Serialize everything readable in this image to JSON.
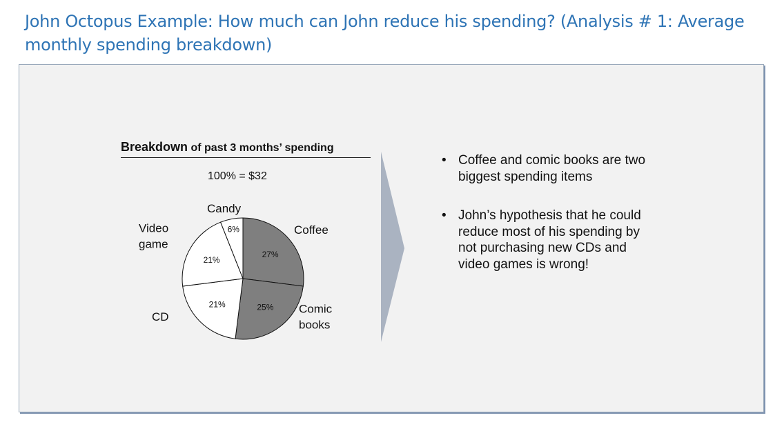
{
  "title": "John Octopus Example: How much can John reduce his spending? (Analysis # 1: Average monthly spending breakdown)",
  "chart_heading": {
    "bold": "Breakdown",
    "rest": " of past 3 months’ spending"
  },
  "colors": {
    "title": "#2e74b5",
    "dark_slice": "#7f7f7f",
    "light_slice": "#ffffff",
    "arrow": "#aab3c1"
  },
  "chart_data": {
    "type": "pie",
    "total_label": "100% = $32",
    "slices": [
      {
        "label": "Coffee",
        "value": 27,
        "pct_label": "27%",
        "fill": "#7f7f7f"
      },
      {
        "label": "Comic books",
        "value": 25,
        "pct_label": "25%",
        "fill": "#7f7f7f"
      },
      {
        "label": "CD",
        "value": 21,
        "pct_label": "21%",
        "fill": "#ffffff"
      },
      {
        "label": "Video game",
        "value": 21,
        "pct_label": "21%",
        "fill": "#ffffff"
      },
      {
        "label": "Candy",
        "value": 6,
        "pct_label": "6%",
        "fill": "#ffffff"
      }
    ]
  },
  "bullets": [
    "Coffee and comic books are two biggest spending items",
    "John’s hypothesis that he could reduce most of his spending by not purchasing new CDs and video games is wrong!"
  ]
}
